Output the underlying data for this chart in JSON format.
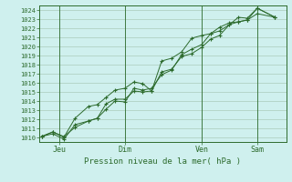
{
  "title": "",
  "xlabel": "Pression niveau de la mer( hPa )",
  "background_color": "#cff0ee",
  "grid_color": "#aaccbb",
  "line_color": "#2d6b2d",
  "ylim": [
    1009.5,
    1024.5
  ],
  "yticks": [
    1010,
    1011,
    1012,
    1013,
    1014,
    1015,
    1016,
    1017,
    1018,
    1019,
    1020,
    1021,
    1022,
    1023,
    1024
  ],
  "xtick_labels": [
    "Jeu",
    "Dim",
    "Ven",
    "Sam"
  ],
  "xtick_positions": [
    0.08,
    0.375,
    0.72,
    0.97
  ],
  "xlim": [
    -0.01,
    1.1
  ],
  "series": [
    {
      "x": [
        0.0,
        0.05,
        0.1,
        0.15,
        0.21,
        0.25,
        0.29,
        0.33,
        0.375,
        0.415,
        0.455,
        0.495,
        0.54,
        0.585,
        0.63,
        0.675,
        0.72,
        0.76,
        0.8,
        0.845,
        0.885,
        0.925,
        0.97,
        1.05
      ],
      "y": [
        1010.1,
        1010.6,
        1010.1,
        1011.1,
        1011.8,
        1012.1,
        1013.7,
        1014.2,
        1014.2,
        1015.1,
        1015.0,
        1015.1,
        1017.2,
        1017.5,
        1018.9,
        1019.2,
        1019.9,
        1020.8,
        1021.2,
        1022.4,
        1022.7,
        1022.9,
        1023.6,
        1023.2
      ]
    },
    {
      "x": [
        0.0,
        0.05,
        0.1,
        0.15,
        0.21,
        0.25,
        0.29,
        0.33,
        0.375,
        0.415,
        0.455,
        0.495,
        0.54,
        0.585,
        0.63,
        0.675,
        0.72,
        0.76,
        0.8,
        0.845,
        0.885,
        0.925,
        0.97,
        1.05
      ],
      "y": [
        1010.1,
        1010.6,
        1010.0,
        1012.1,
        1013.4,
        1013.6,
        1014.4,
        1015.2,
        1015.4,
        1016.1,
        1015.9,
        1015.1,
        1018.4,
        1018.7,
        1019.4,
        1020.9,
        1021.2,
        1021.4,
        1022.1,
        1022.6,
        1022.7,
        1022.9,
        1024.2,
        1023.2
      ]
    },
    {
      "x": [
        0.0,
        0.05,
        0.1,
        0.15,
        0.21,
        0.25,
        0.29,
        0.33,
        0.375,
        0.415,
        0.455,
        0.495,
        0.54,
        0.585,
        0.63,
        0.675,
        0.72,
        0.76,
        0.8,
        0.845,
        0.885,
        0.925,
        0.97,
        1.05
      ],
      "y": [
        1010.1,
        1010.4,
        1009.8,
        1011.4,
        1011.8,
        1012.1,
        1013.1,
        1014.0,
        1013.9,
        1015.4,
        1015.2,
        1015.4,
        1016.9,
        1017.4,
        1019.1,
        1019.7,
        1020.2,
        1021.4,
        1021.7,
        1022.4,
        1023.2,
        1023.1,
        1024.2,
        1023.2
      ]
    }
  ]
}
